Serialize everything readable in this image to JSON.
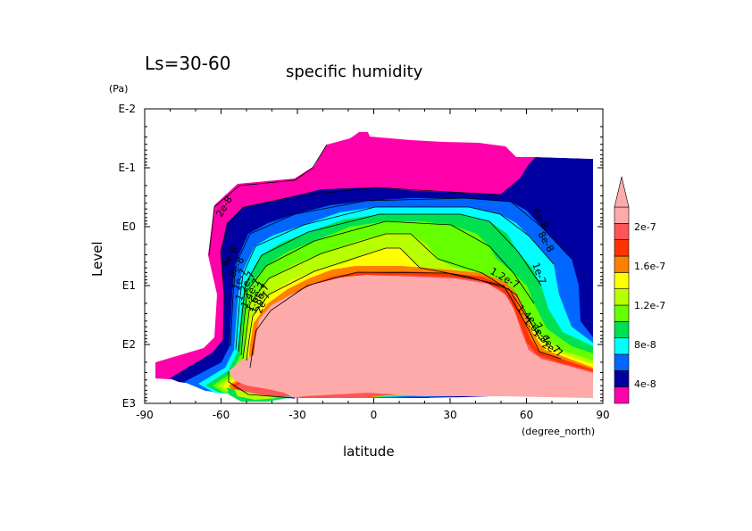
{
  "chart_data": {
    "type": "contour",
    "period_label": "Ls=30-60",
    "title": "specific humidity",
    "xlabel": "latitude",
    "x_units": "(degree_north)",
    "ylabel": "Level",
    "y_units": "(Pa)",
    "x_range": [
      -90,
      90
    ],
    "x_ticks": [
      "-90",
      "-60",
      "-30",
      "0",
      "30",
      "60",
      "90"
    ],
    "y_scale": "log",
    "y_range": [
      0.01,
      1000
    ],
    "y_ticks": [
      "E-2",
      "E-1",
      "E0",
      "E1",
      "E2",
      "E3"
    ],
    "colorbar": {
      "labels": [
        "2e-7",
        "1.6e-7",
        "1.2e-7",
        "8e-8",
        "4e-8"
      ],
      "levels": [
        {
          "from": 0,
          "to": 4e-08,
          "color": "#ff00aa"
        },
        {
          "from": 4e-08,
          "to": 6e-08,
          "color": "#0000a0"
        },
        {
          "from": 6e-08,
          "to": 8e-08,
          "color": "#0066ff"
        },
        {
          "from": 8e-08,
          "to": 1e-07,
          "color": "#00ffff"
        },
        {
          "from": 1e-07,
          "to": 1.2e-07,
          "color": "#00e050"
        },
        {
          "from": 1.2e-07,
          "to": 1.4e-07,
          "color": "#66ff00"
        },
        {
          "from": 1.4e-07,
          "to": 1.6e-07,
          "color": "#b8ff00"
        },
        {
          "from": 1.6e-07,
          "to": 1.8e-07,
          "color": "#ffff00"
        },
        {
          "from": 1.8e-07,
          "to": 2e-07,
          "color": "#ff8000"
        },
        {
          "from": 2e-07,
          "to": 2.2e-07,
          "color": "#ff3300"
        },
        {
          "from": 2.2e-07,
          "to": 2.4e-07,
          "color": "#ff5555"
        },
        {
          "from": 2.4e-07,
          "to": null,
          "color": "#ffaaaa"
        }
      ]
    },
    "contour_labels": [
      "2e-8",
      "6e-8",
      "8e-8",
      "1e-7",
      "1.2e-7",
      "1.4e-7",
      "1.6e-7",
      "1.8e-7",
      "2e-7",
      "2e-8",
      "4e-8",
      "6e-8",
      "8e-8",
      "1e-7",
      "1.2e-7",
      "1.4e-7",
      "1.6e-7",
      "1.8e-7",
      "2e-7"
    ]
  }
}
